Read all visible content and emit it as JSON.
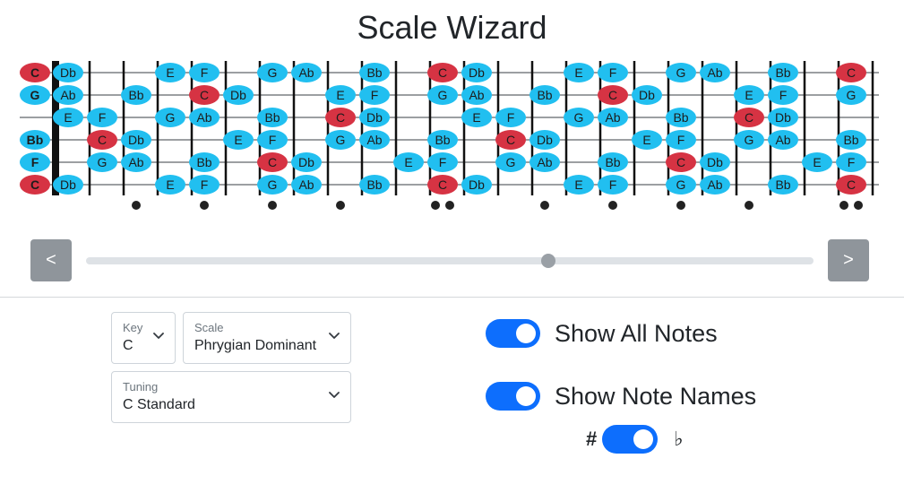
{
  "app": {
    "title": "Scale Wizard"
  },
  "fretboard": {
    "rows": [
      {
        "open": "C",
        "frets": [
          "Db",
          "",
          "",
          "E",
          "F",
          "",
          "G",
          "Ab",
          "",
          "Bb",
          "",
          "C",
          "Db",
          "",
          "",
          "E",
          "F",
          "",
          "G",
          "Ab",
          "",
          "Bb",
          "",
          "C"
        ]
      },
      {
        "open": "G",
        "frets": [
          "Ab",
          "",
          "Bb",
          "",
          "C",
          "Db",
          "",
          "",
          "E",
          "F",
          "",
          "G",
          "Ab",
          "",
          "Bb",
          "",
          "C",
          "Db",
          "",
          "",
          "E",
          "F",
          "",
          "G"
        ]
      },
      {
        "open": "",
        "frets": [
          "E",
          "F",
          "",
          "G",
          "Ab",
          "",
          "Bb",
          "",
          "C",
          "Db",
          "",
          "",
          "E",
          "F",
          "",
          "G",
          "Ab",
          "",
          "Bb",
          "",
          "C",
          "Db",
          "",
          ""
        ]
      },
      {
        "open": "Bb",
        "frets": [
          "",
          "C",
          "Db",
          "",
          "",
          "E",
          "F",
          "",
          "G",
          "Ab",
          "",
          "Bb",
          "",
          "C",
          "Db",
          "",
          "",
          "E",
          "F",
          "",
          "G",
          "Ab",
          "",
          "Bb"
        ]
      },
      {
        "open": "F",
        "frets": [
          "",
          "G",
          "Ab",
          "",
          "Bb",
          "",
          "C",
          "Db",
          "",
          "",
          "E",
          "F",
          "",
          "G",
          "Ab",
          "",
          "Bb",
          "",
          "C",
          "Db",
          "",
          "",
          "E",
          "F"
        ]
      },
      {
        "open": "C",
        "frets": [
          "Db",
          "",
          "",
          "E",
          "F",
          "",
          "G",
          "Ab",
          "",
          "Bb",
          "",
          "C",
          "Db",
          "",
          "",
          "E",
          "F",
          "",
          "G",
          "Ab",
          "",
          "Bb",
          "",
          "C"
        ]
      }
    ],
    "root_note": "C",
    "single_markers": [
      3,
      5,
      7,
      9,
      15,
      17,
      19,
      21
    ],
    "double_markers": [
      12,
      24
    ],
    "colors": {
      "note": "#21bff0",
      "root": "#d63343",
      "string": "#212529"
    }
  },
  "navigation": {
    "prev_label": "<",
    "next_label": ">",
    "slider_position": 0.636
  },
  "controls": {
    "key": {
      "label": "Key",
      "value": "C"
    },
    "scale": {
      "label": "Scale",
      "value": "Phrygian Dominant"
    },
    "tuning": {
      "label": "Tuning",
      "value": "C Standard"
    }
  },
  "toggles": {
    "show_all_notes": {
      "label": "Show All Notes",
      "checked": true
    },
    "show_note_names": {
      "label": "Show Note Names",
      "checked": true
    },
    "accidentals": {
      "sharp_symbol": "#",
      "flat_symbol": "♭",
      "flat_selected": true
    }
  }
}
